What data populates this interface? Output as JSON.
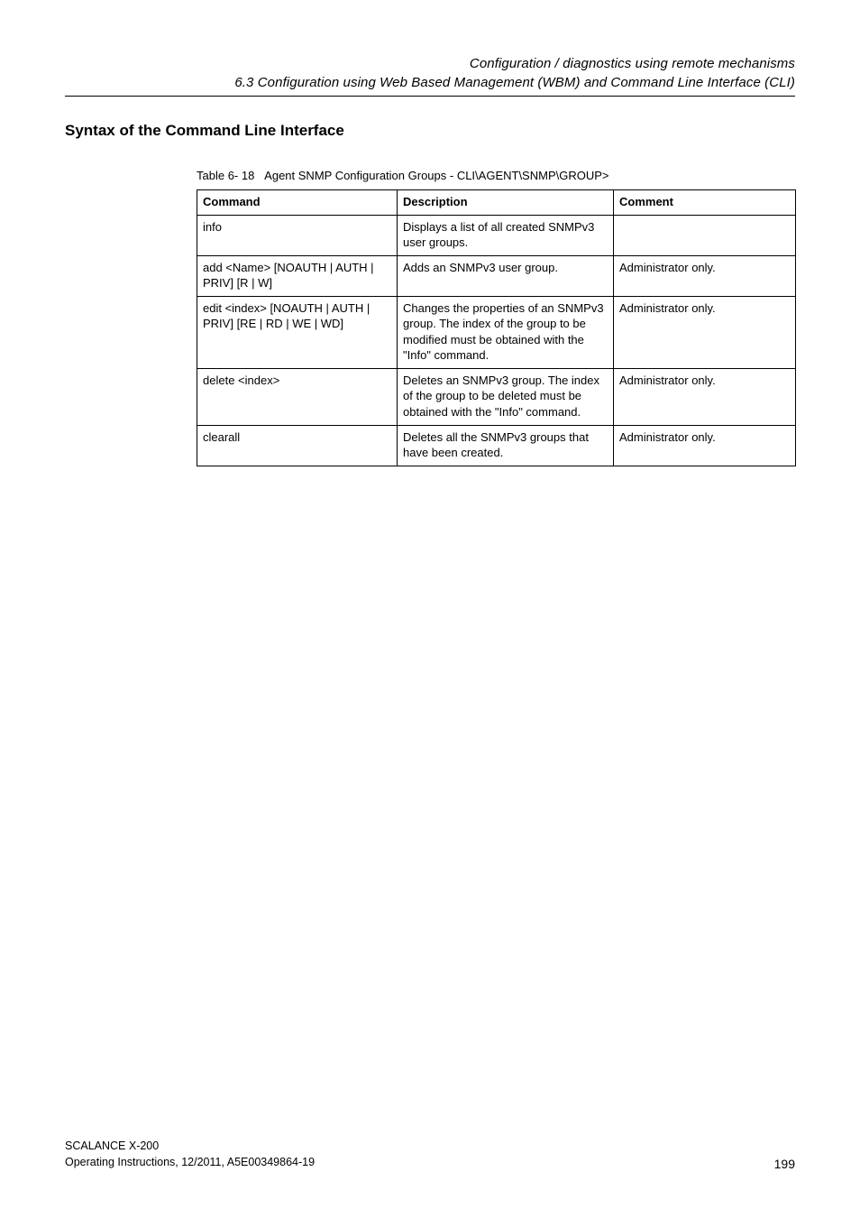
{
  "header": {
    "line1": "Configuration / diagnostics using remote mechanisms",
    "line2": "6.3 Configuration using Web Based Management (WBM) and Command Line Interface (CLI)"
  },
  "section": {
    "title": "Syntax of the Command Line Interface"
  },
  "table": {
    "caption_label": "Table 6- 18",
    "caption_text": "Agent SNMP Configuration Groups - CLI\\AGENT\\SNMP\\GROUP>",
    "headers": {
      "c1": "Command",
      "c2": "Description",
      "c3": "Comment"
    },
    "rows": [
      {
        "command": "info",
        "description": "Displays a list of all created SNMPv3 user groups.",
        "comment": ""
      },
      {
        "command": "add <Name> [NOAUTH | AUTH | PRIV] [R | W]",
        "description": "Adds an SNMPv3 user group.",
        "comment": "Administrator only."
      },
      {
        "command": "edit <index> [NOAUTH | AUTH | PRIV] [RE | RD | WE | WD]",
        "description": "Changes the properties of an SNMPv3 group. The index of the group to be modified must be obtained with the \"Info\" command.",
        "comment": "Administrator only."
      },
      {
        "command": "delete <index>",
        "description": "Deletes an SNMPv3 group. The index of the group to be deleted must be obtained with the \"Info\" command.",
        "comment": "Administrator only."
      },
      {
        "command": "clearall",
        "description": "Deletes all the SNMPv3 groups that have been created.",
        "comment": "Administrator only."
      }
    ]
  },
  "footer": {
    "line1": "SCALANCE X-200",
    "line2": "Operating Instructions, 12/2011, A5E00349864-19",
    "page_number": "199"
  }
}
